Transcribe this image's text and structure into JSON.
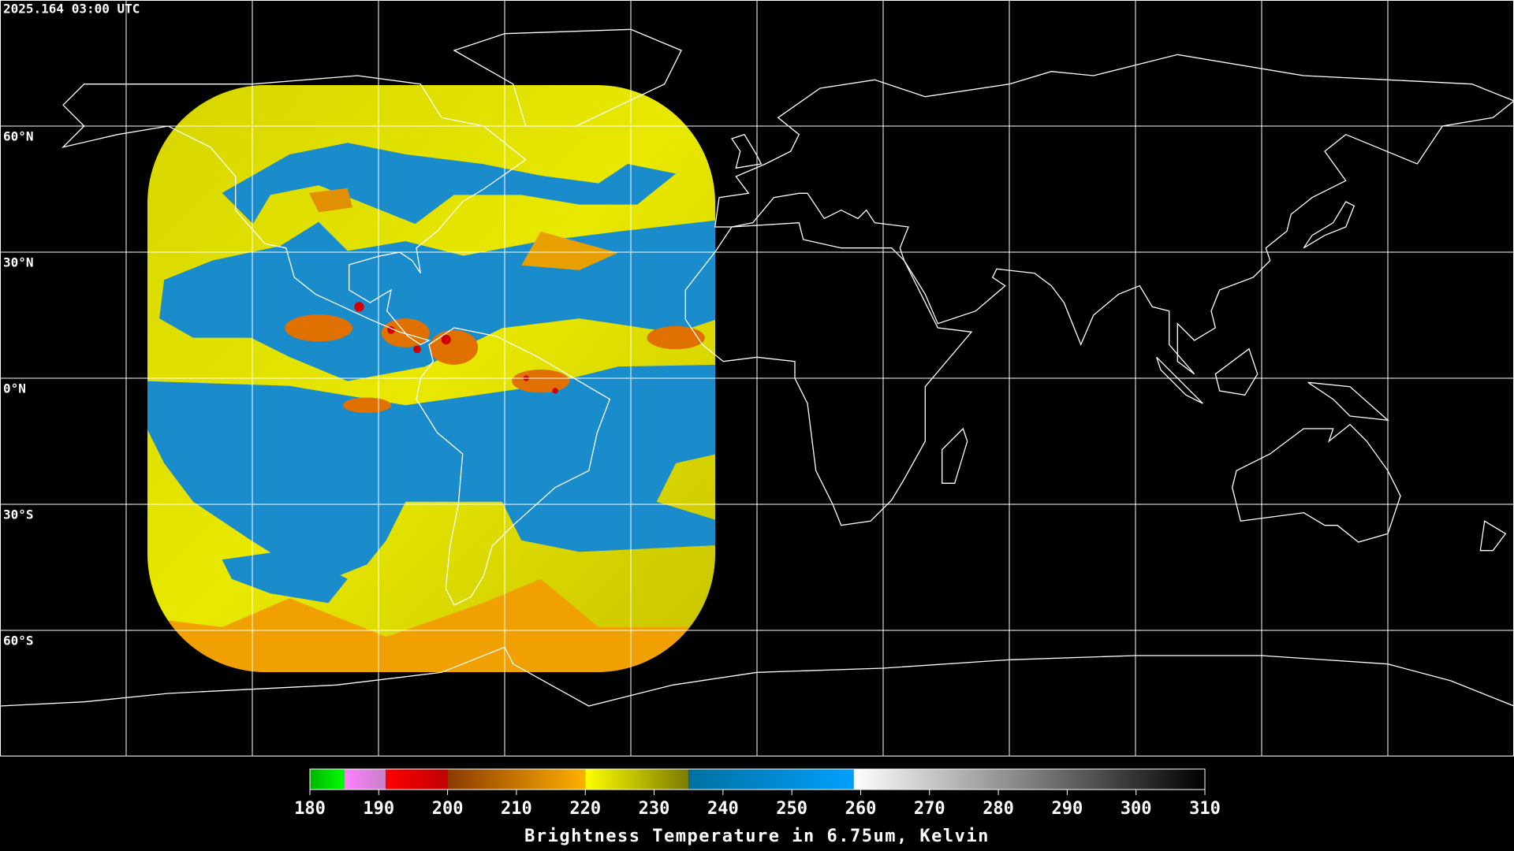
{
  "timestamp": "2025.164 03:00 UTC",
  "map": {
    "projection": "equirectangular",
    "xlim": [
      -180,
      180
    ],
    "ylim": [
      -90,
      90
    ],
    "lon_lines": [
      -150,
      -120,
      -90,
      -60,
      -30,
      0,
      30,
      60,
      90,
      120,
      150
    ],
    "lat_lines": [
      {
        "value": 60,
        "label": "60°N"
      },
      {
        "value": 30,
        "label": "30°N"
      },
      {
        "value": 0,
        "label": "0°N"
      },
      {
        "value": -30,
        "label": "30°S"
      },
      {
        "value": -60,
        "label": "60°S"
      }
    ],
    "grid_color": "#ffffff",
    "coast_color": "#ffffff"
  },
  "colorbar": {
    "title": "Brightness Temperature in 6.75um, Kelvin",
    "range": [
      180,
      310
    ],
    "ticks": [
      180,
      190,
      200,
      210,
      220,
      230,
      240,
      250,
      260,
      270,
      280,
      290,
      300,
      310
    ],
    "segments": [
      {
        "from": 180,
        "to": 185,
        "colors": [
          "#00b400",
          "#00ff00"
        ]
      },
      {
        "from": 185,
        "to": 191,
        "colors": [
          "#ff80ff",
          "#c880c8"
        ]
      },
      {
        "from": 191,
        "to": 200,
        "colors": [
          "#ff0000",
          "#c00000"
        ]
      },
      {
        "from": 200,
        "to": 220,
        "colors": [
          "#8b3a00",
          "#ffb000"
        ]
      },
      {
        "from": 220,
        "to": 235,
        "colors": [
          "#ffff00",
          "#7a7a00"
        ]
      },
      {
        "from": 235,
        "to": 259,
        "colors": [
          "#0070a0",
          "#00a0ff"
        ]
      },
      {
        "from": 259,
        "to": 310,
        "colors": [
          "#ffffff",
          "#000000"
        ]
      }
    ]
  }
}
